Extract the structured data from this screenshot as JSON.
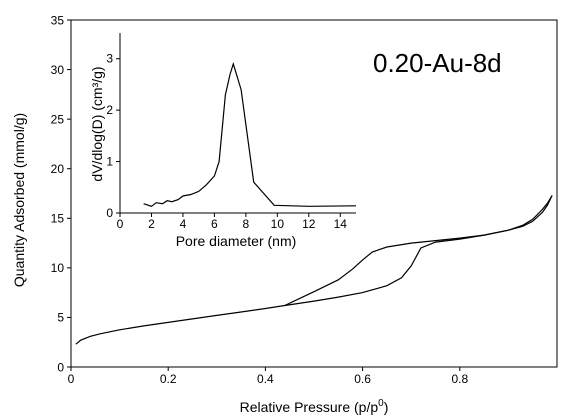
{
  "chart_data": [
    {
      "type": "line",
      "title": "",
      "annotation": "0.20-Au-8d",
      "xlabel": "Relative Pressure (p/p",
      "xlabel_sup": "0",
      "xlabel_close": ")",
      "ylabel": "Quantity Adsorbed  (mmol/g)",
      "xlim": [
        0,
        1.0
      ],
      "ylim": [
        0,
        35
      ],
      "xticks": [
        0,
        0.2,
        0.4,
        0.6,
        0.8
      ],
      "xtick_labels": [
        "0",
        "0.2",
        "0.4",
        "0.6",
        "0.8"
      ],
      "yticks": [
        0,
        5,
        10,
        15,
        20,
        25,
        30,
        35
      ],
      "ytick_labels": [
        "0",
        "5",
        "10",
        "15",
        "20",
        "25",
        "30",
        "35"
      ],
      "grid": false,
      "series": [
        {
          "values_note": "",
          "x": [
            0.01,
            0.02,
            0.04,
            0.06,
            0.08,
            0.1,
            0.15,
            0.2,
            0.25,
            0.3,
            0.35,
            0.4,
            0.44,
            0.5,
            0.55,
            0.6,
            0.65,
            0.68,
            0.7,
            0.72,
            0.75,
            0.8,
            0.85,
            0.9,
            0.93,
            0.95,
            0.97,
            0.98,
            0.99
          ],
          "y": [
            2.3,
            2.7,
            3.1,
            3.35,
            3.55,
            3.75,
            4.15,
            4.5,
            4.85,
            5.2,
            5.55,
            5.9,
            6.2,
            6.65,
            7.05,
            7.5,
            8.2,
            9.0,
            10.2,
            12.0,
            12.6,
            12.9,
            13.3,
            13.8,
            14.2,
            14.7,
            15.6,
            16.3,
            17.3
          ]
        },
        {
          "x": [
            0.44,
            0.47,
            0.5,
            0.55,
            0.58,
            0.6,
            0.62,
            0.65,
            0.7,
            0.75,
            0.8,
            0.85,
            0.9,
            0.93,
            0.95,
            0.97,
            0.98,
            0.99
          ],
          "y": [
            6.2,
            6.9,
            7.6,
            8.8,
            9.9,
            10.8,
            11.6,
            12.1,
            12.5,
            12.75,
            13.0,
            13.3,
            13.8,
            14.3,
            14.9,
            15.9,
            16.5,
            17.3
          ]
        }
      ]
    },
    {
      "type": "line",
      "title": "",
      "xlabel": "Pore diameter (nm)",
      "ylabel": "dV/dlog(D) (cm³/g)",
      "xlim": [
        0,
        15
      ],
      "ylim": [
        0,
        3.5
      ],
      "xticks": [
        0,
        2,
        4,
        6,
        8,
        10,
        12,
        14
      ],
      "xtick_labels": [
        "0",
        "2",
        "4",
        "6",
        "8",
        "10",
        "12",
        "14"
      ],
      "yticks": [
        0,
        1,
        2,
        3
      ],
      "ytick_labels": [
        "0",
        "1",
        "2",
        "3"
      ],
      "grid": false,
      "series": [
        {
          "x": [
            1.5,
            2.0,
            2.3,
            2.7,
            3.0,
            3.3,
            3.7,
            4.0,
            4.5,
            5.0,
            5.5,
            6.0,
            6.3,
            6.7,
            7.0,
            7.2,
            7.7,
            8.5,
            9.8,
            12.0,
            15.0
          ],
          "y": [
            0.18,
            0.13,
            0.2,
            0.18,
            0.24,
            0.22,
            0.26,
            0.33,
            0.36,
            0.42,
            0.55,
            0.72,
            1.0,
            2.3,
            2.7,
            2.9,
            2.4,
            0.6,
            0.15,
            0.13,
            0.14
          ]
        }
      ]
    }
  ]
}
